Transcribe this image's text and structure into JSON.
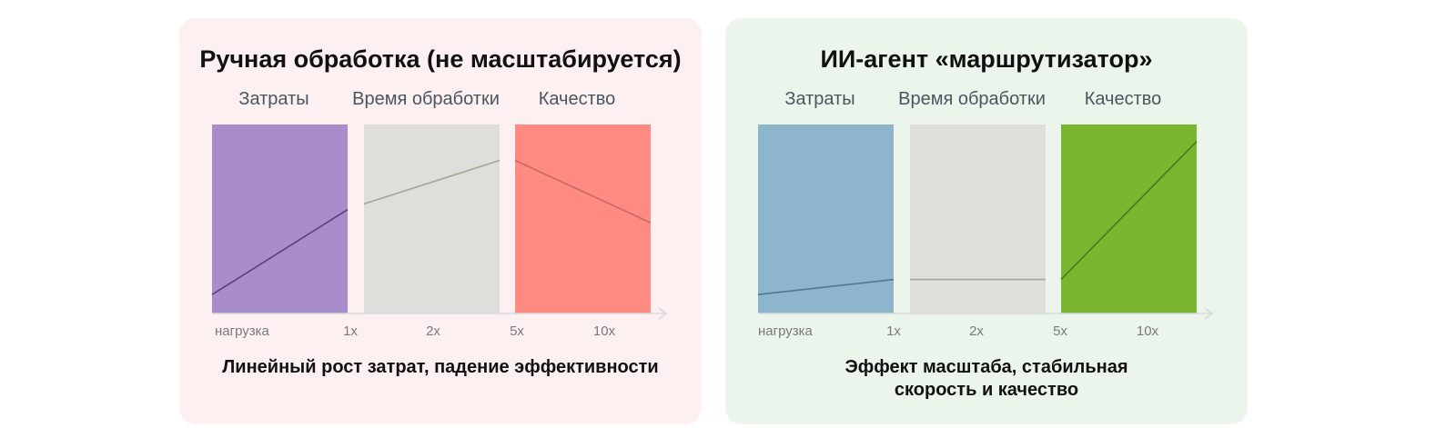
{
  "chart_data": [
    {
      "type": "line",
      "title": "Ручная обработка (не масштабируется)",
      "subtitle": "Линейный рост затрат, падение эффективности",
      "x_tick_labels": [
        "нагрузка",
        "1x",
        "2x",
        "5x",
        "10x"
      ],
      "ylim": [
        0,
        100
      ],
      "grid": false,
      "panels": [
        {
          "label": "Затраты",
          "color": "#a88ccc",
          "line_color": "#5b3f82",
          "values": [
            10,
            55
          ]
        },
        {
          "label": "Время обработки",
          "color": "#dededa",
          "line_color": "#a3a690",
          "values": [
            58,
            81
          ]
        },
        {
          "label": "Качество",
          "color": "#fe8a82",
          "line_color": "#c46a64",
          "values": [
            81,
            48
          ]
        }
      ]
    },
    {
      "type": "line",
      "title": "ИИ-агент «маршрутизатор»",
      "subtitle": "Эффект масштаба, стабильная скорость и качество",
      "x_tick_labels": [
        "нагрузка",
        "1x",
        "2x",
        "5x",
        "10x"
      ],
      "ylim": [
        0,
        100
      ],
      "grid": false,
      "panels": [
        {
          "label": "Затраты",
          "color": "#8db5cb",
          "line_color": "#4d7a92",
          "values": [
            10,
            18
          ]
        },
        {
          "label": "Время обработки",
          "color": "#dededa",
          "line_color": "#a3a690",
          "values": [
            18,
            18
          ]
        },
        {
          "label": "Качество",
          "color": "#7cb630",
          "line_color": "#4b7a1a",
          "values": [
            18,
            91
          ]
        }
      ]
    }
  ]
}
